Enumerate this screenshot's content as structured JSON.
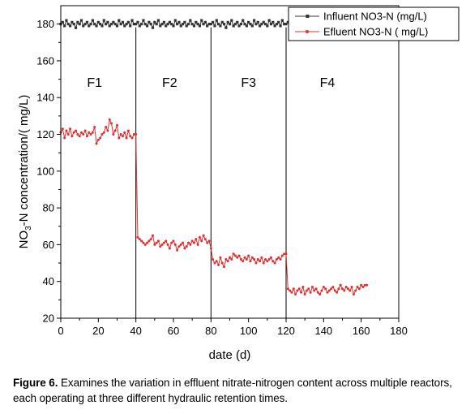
{
  "chart_data": {
    "type": "line",
    "xlabel": "date (d)",
    "ylabel_main": "NO",
    "ylabel_sub": "3",
    "ylabel_rest": "-N concentration/(   mg/L)",
    "xlim": [
      0,
      180
    ],
    "ylim": [
      20,
      190
    ],
    "x_ticks": [
      0,
      20,
      40,
      60,
      80,
      100,
      120,
      140,
      160,
      180
    ],
    "y_ticks": [
      20,
      40,
      60,
      80,
      100,
      120,
      140,
      160,
      180
    ],
    "phase_boundaries": [
      40,
      80,
      120
    ],
    "phases": [
      {
        "label": "F1",
        "x": 18
      },
      {
        "label": "F2",
        "x": 58
      },
      {
        "label": "F3",
        "x": 100
      },
      {
        "label": "F4",
        "x": 142
      }
    ],
    "legend_position": "top-right",
    "series": [
      {
        "name": "Influent NO3-N (mg/L)",
        "color": "#333333",
        "marker": "square",
        "x": [
          0,
          1,
          2,
          3,
          4,
          5,
          6,
          7,
          8,
          9,
          10,
          11,
          12,
          13,
          14,
          15,
          16,
          17,
          18,
          19,
          20,
          21,
          22,
          23,
          24,
          25,
          26,
          27,
          28,
          29,
          30,
          31,
          32,
          33,
          34,
          35,
          36,
          37,
          38,
          39,
          40,
          41,
          42,
          43,
          44,
          45,
          46,
          47,
          48,
          49,
          50,
          51,
          52,
          53,
          54,
          55,
          56,
          57,
          58,
          59,
          60,
          61,
          62,
          63,
          64,
          65,
          66,
          67,
          68,
          69,
          70,
          71,
          72,
          73,
          74,
          75,
          76,
          77,
          78,
          79,
          80,
          81,
          82,
          83,
          84,
          85,
          86,
          87,
          88,
          89,
          90,
          91,
          92,
          93,
          94,
          95,
          96,
          97,
          98,
          99,
          100,
          101,
          102,
          103,
          104,
          105,
          106,
          107,
          108,
          109,
          110,
          111,
          112,
          113,
          114,
          115,
          116,
          117,
          118,
          119,
          120,
          121,
          122,
          123,
          124,
          125,
          126,
          127,
          128,
          129,
          130,
          131,
          132,
          133,
          134,
          135,
          136,
          137,
          138,
          139,
          140,
          141,
          142,
          143,
          144,
          145,
          146,
          147,
          148,
          149,
          150,
          151,
          152,
          153,
          154,
          155,
          156,
          157,
          158,
          159,
          160,
          161,
          162,
          163
        ],
        "values": [
          180,
          181,
          179,
          182,
          180,
          179,
          181,
          180,
          178,
          181,
          180,
          182,
          179,
          180,
          181,
          179,
          180,
          182,
          180,
          179,
          181,
          180,
          179,
          182,
          180,
          181,
          179,
          180,
          181,
          180,
          179,
          182,
          180,
          181,
          179,
          180,
          181,
          179,
          182,
          180,
          180,
          181,
          179,
          180,
          182,
          180,
          179,
          181,
          180,
          178,
          181,
          180,
          182,
          179,
          180,
          181,
          179,
          180,
          181,
          180,
          179,
          182,
          180,
          181,
          179,
          180,
          181,
          179,
          180,
          182,
          180,
          179,
          181,
          180,
          179,
          182,
          180,
          181,
          179,
          180,
          180,
          181,
          179,
          182,
          180,
          179,
          181,
          180,
          178,
          181,
          180,
          182,
          179,
          180,
          181,
          179,
          180,
          182,
          180,
          179,
          181,
          180,
          179,
          182,
          180,
          181,
          179,
          180,
          181,
          180,
          179,
          182,
          180,
          181,
          179,
          180,
          181,
          179,
          182,
          180,
          180,
          181,
          179,
          180,
          182,
          180,
          179,
          181,
          180,
          178,
          181,
          180,
          182,
          179,
          180,
          181,
          179,
          180,
          181,
          180,
          179,
          182,
          180,
          181,
          179,
          180,
          181,
          179,
          180,
          182,
          180,
          179,
          181,
          180,
          179,
          182,
          180,
          181,
          179,
          180,
          180,
          181,
          179,
          180
        ]
      },
      {
        "name": "Efluent NO3-N (   mg/L)",
        "color": "#e03030",
        "marker": "circle",
        "x": [
          0,
          1,
          2,
          3,
          4,
          5,
          6,
          7,
          8,
          9,
          10,
          11,
          12,
          13,
          14,
          15,
          16,
          17,
          18,
          19,
          20,
          21,
          22,
          23,
          24,
          25,
          26,
          27,
          28,
          29,
          30,
          31,
          32,
          33,
          34,
          35,
          36,
          37,
          38,
          39,
          40,
          41,
          42,
          43,
          44,
          45,
          46,
          47,
          48,
          49,
          50,
          51,
          52,
          53,
          54,
          55,
          56,
          57,
          58,
          59,
          60,
          61,
          62,
          63,
          64,
          65,
          66,
          67,
          68,
          69,
          70,
          71,
          72,
          73,
          74,
          75,
          76,
          77,
          78,
          79,
          80,
          81,
          82,
          83,
          84,
          85,
          86,
          87,
          88,
          89,
          90,
          91,
          92,
          93,
          94,
          95,
          96,
          97,
          98,
          99,
          100,
          101,
          102,
          103,
          104,
          105,
          106,
          107,
          108,
          109,
          110,
          111,
          112,
          113,
          114,
          115,
          116,
          117,
          118,
          119,
          120,
          121,
          122,
          123,
          124,
          125,
          126,
          127,
          128,
          129,
          130,
          131,
          132,
          133,
          134,
          135,
          136,
          137,
          138,
          139,
          140,
          141,
          142,
          143,
          144,
          145,
          146,
          147,
          148,
          149,
          150,
          151,
          152,
          153,
          154,
          155,
          156,
          157,
          158,
          159,
          160,
          161,
          162,
          163
        ],
        "values": [
          121,
          123,
          118,
          122,
          120,
          123,
          119,
          121,
          122,
          120,
          119,
          121,
          120,
          122,
          119,
          121,
          120,
          121,
          124,
          115,
          117,
          118,
          120,
          121,
          124,
          122,
          128,
          126,
          120,
          122,
          125,
          118,
          120,
          119,
          121,
          118,
          122,
          119,
          118,
          120,
          120,
          64,
          63,
          62,
          61,
          60,
          61,
          62,
          63,
          65,
          60,
          61,
          62,
          59,
          60,
          61,
          62,
          60,
          58,
          61,
          62,
          60,
          57,
          59,
          60,
          61,
          58,
          59,
          61,
          60,
          62,
          61,
          63,
          60,
          64,
          62,
          65,
          63,
          61,
          62,
          58,
          52,
          50,
          51,
          49,
          53,
          50,
          48,
          52,
          51,
          53,
          52,
          55,
          54,
          53,
          54,
          52,
          51,
          53,
          52,
          54,
          51,
          53,
          52,
          50,
          52,
          51,
          53,
          50,
          52,
          51,
          52,
          53,
          51,
          50,
          52,
          53,
          52,
          54,
          55,
          55,
          36,
          35,
          34,
          36,
          33,
          35,
          36,
          34,
          37,
          33,
          35,
          36,
          34,
          37,
          35,
          36,
          34,
          33,
          35,
          37,
          36,
          34,
          35,
          36,
          37,
          35,
          34,
          36,
          38,
          36,
          35,
          37,
          36,
          35,
          37,
          33,
          35,
          37,
          36,
          38,
          37,
          38,
          38
        ]
      }
    ]
  },
  "caption": {
    "label": "Figure 6.",
    "text": " Examines the variation in effluent nitrate-nitrogen content across multiple reactors, each operating at three different hydraulic retention times."
  }
}
